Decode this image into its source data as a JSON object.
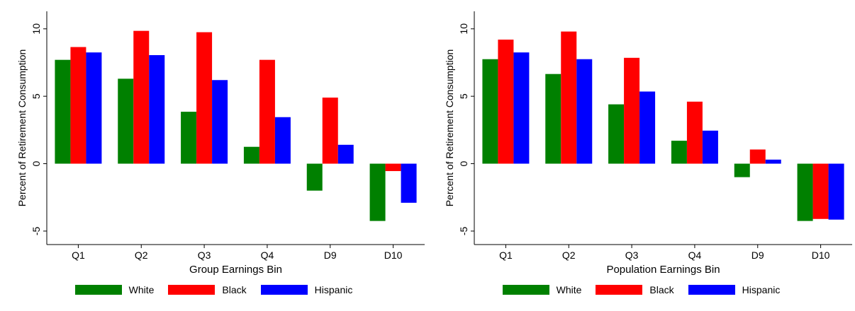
{
  "colors": {
    "White": "#008000",
    "Black": "#ff0000",
    "Hispanic": "#0000ff"
  },
  "legend": [
    "White",
    "Black",
    "Hispanic"
  ],
  "chart_data": [
    {
      "type": "bar",
      "xlabel": "Group Earnings Bin",
      "ylabel": "Percent of Retirement Consumption",
      "categories": [
        "Q1",
        "Q2",
        "Q3",
        "Q4",
        "D9",
        "D10"
      ],
      "yticks": [
        -5,
        0,
        5,
        10
      ],
      "ylim": [
        -6.0,
        11.3
      ],
      "grid": false,
      "legend_position": "bottom",
      "series": [
        {
          "name": "White",
          "values": [
            7.7,
            6.3,
            3.85,
            1.25,
            -2.0,
            -4.25
          ]
        },
        {
          "name": "Black",
          "values": [
            8.65,
            9.85,
            9.75,
            7.7,
            4.9,
            -0.55
          ]
        },
        {
          "name": "Hispanic",
          "values": [
            8.25,
            8.05,
            6.2,
            3.45,
            1.4,
            -2.9
          ]
        }
      ]
    },
    {
      "type": "bar",
      "xlabel": "Population Earnings Bin",
      "ylabel": "Percent of Retirement Consumption",
      "categories": [
        "Q1",
        "Q2",
        "Q3",
        "Q4",
        "D9",
        "D10"
      ],
      "yticks": [
        -5,
        0,
        5,
        10
      ],
      "ylim": [
        -6.0,
        11.3
      ],
      "grid": false,
      "legend_position": "bottom",
      "series": [
        {
          "name": "White",
          "values": [
            7.75,
            6.65,
            4.4,
            1.7,
            -1.0,
            -4.25
          ]
        },
        {
          "name": "Black",
          "values": [
            9.2,
            9.8,
            7.85,
            4.6,
            1.05,
            -4.1
          ]
        },
        {
          "name": "Hispanic",
          "values": [
            8.25,
            7.75,
            5.35,
            2.45,
            0.3,
            -4.15
          ]
        }
      ]
    }
  ]
}
